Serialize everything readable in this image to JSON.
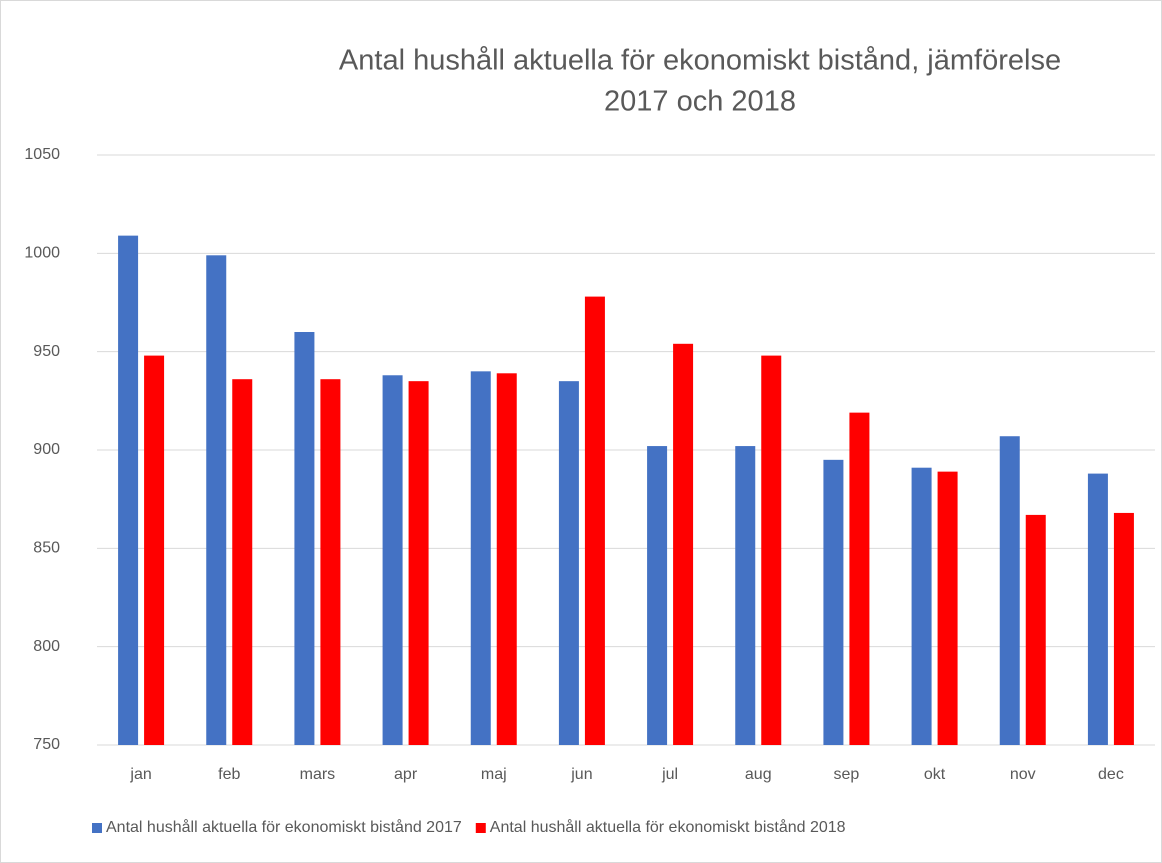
{
  "chart_data": {
    "type": "bar",
    "title": [
      "Antal hushåll aktuella för ekonomiskt bistånd, jämförelse",
      "2017 och 2018"
    ],
    "categories": [
      "jan",
      "feb",
      "mars",
      "apr",
      "maj",
      "jun",
      "jul",
      "aug",
      "sep",
      "okt",
      "nov",
      "dec"
    ],
    "series": [
      {
        "name": "Antal hushåll aktuella för ekonomiskt bistånd 2017",
        "color": "#4472c4",
        "values": [
          1009,
          999,
          960,
          938,
          940,
          935,
          902,
          902,
          895,
          891,
          907,
          888
        ]
      },
      {
        "name": "Antal hushåll aktuella för ekonomiskt bistånd 2018",
        "color": "#ff0000",
        "values": [
          948,
          936,
          936,
          935,
          939,
          978,
          954,
          948,
          919,
          889,
          867,
          868
        ]
      }
    ],
    "ylim": [
      750,
      1050
    ],
    "yticks": [
      750,
      800,
      850,
      900,
      950,
      1000,
      1050
    ],
    "grid": true,
    "legend": "bottom"
  }
}
